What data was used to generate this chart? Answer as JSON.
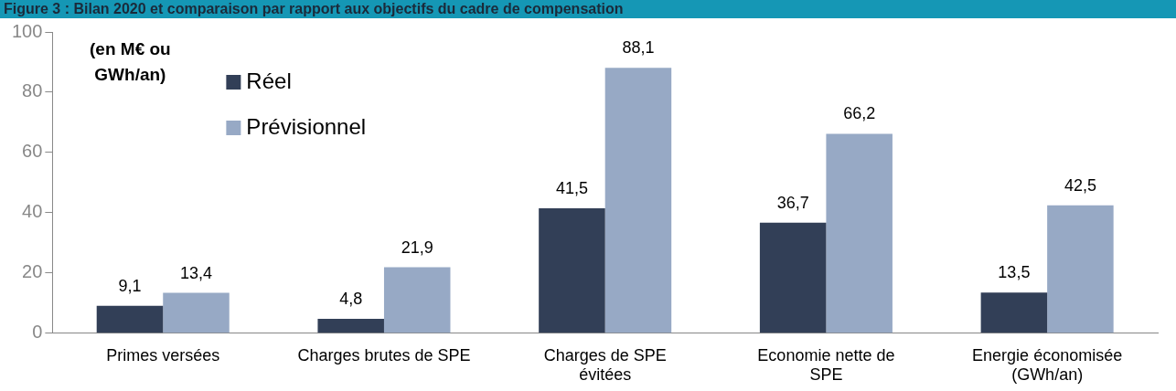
{
  "chart_data": {
    "type": "bar",
    "title": "Figure 3 : Bilan 2020 et comparaison par rapport aux objectifs du cadre de compensation",
    "ylabel": "(en M€ ou GWh/an)",
    "categories": [
      "Primes versées",
      "Charges brutes de SPE",
      "Charges de SPE évitées",
      "Economie nette de SPE",
      "Energie économisée (GWh/an)"
    ],
    "series": [
      {
        "name": "Réel",
        "color": "#323f57",
        "values": [
          9.1,
          4.8,
          41.5,
          36.7,
          13.5
        ],
        "value_labels": [
          "9,1",
          "4,8",
          "41,5",
          "36,7",
          "13,5"
        ]
      },
      {
        "name": "Prévisionnel",
        "color": "#97a9c5",
        "values": [
          13.4,
          21.9,
          88.1,
          66.2,
          42.5
        ],
        "value_labels": [
          "13,4",
          "21,9",
          "88,1",
          "66,2",
          "42,5"
        ]
      }
    ],
    "ylim": [
      0,
      100
    ],
    "yticks": [
      0,
      20,
      40,
      60,
      80,
      100
    ],
    "grid": false,
    "legend": "top left"
  }
}
